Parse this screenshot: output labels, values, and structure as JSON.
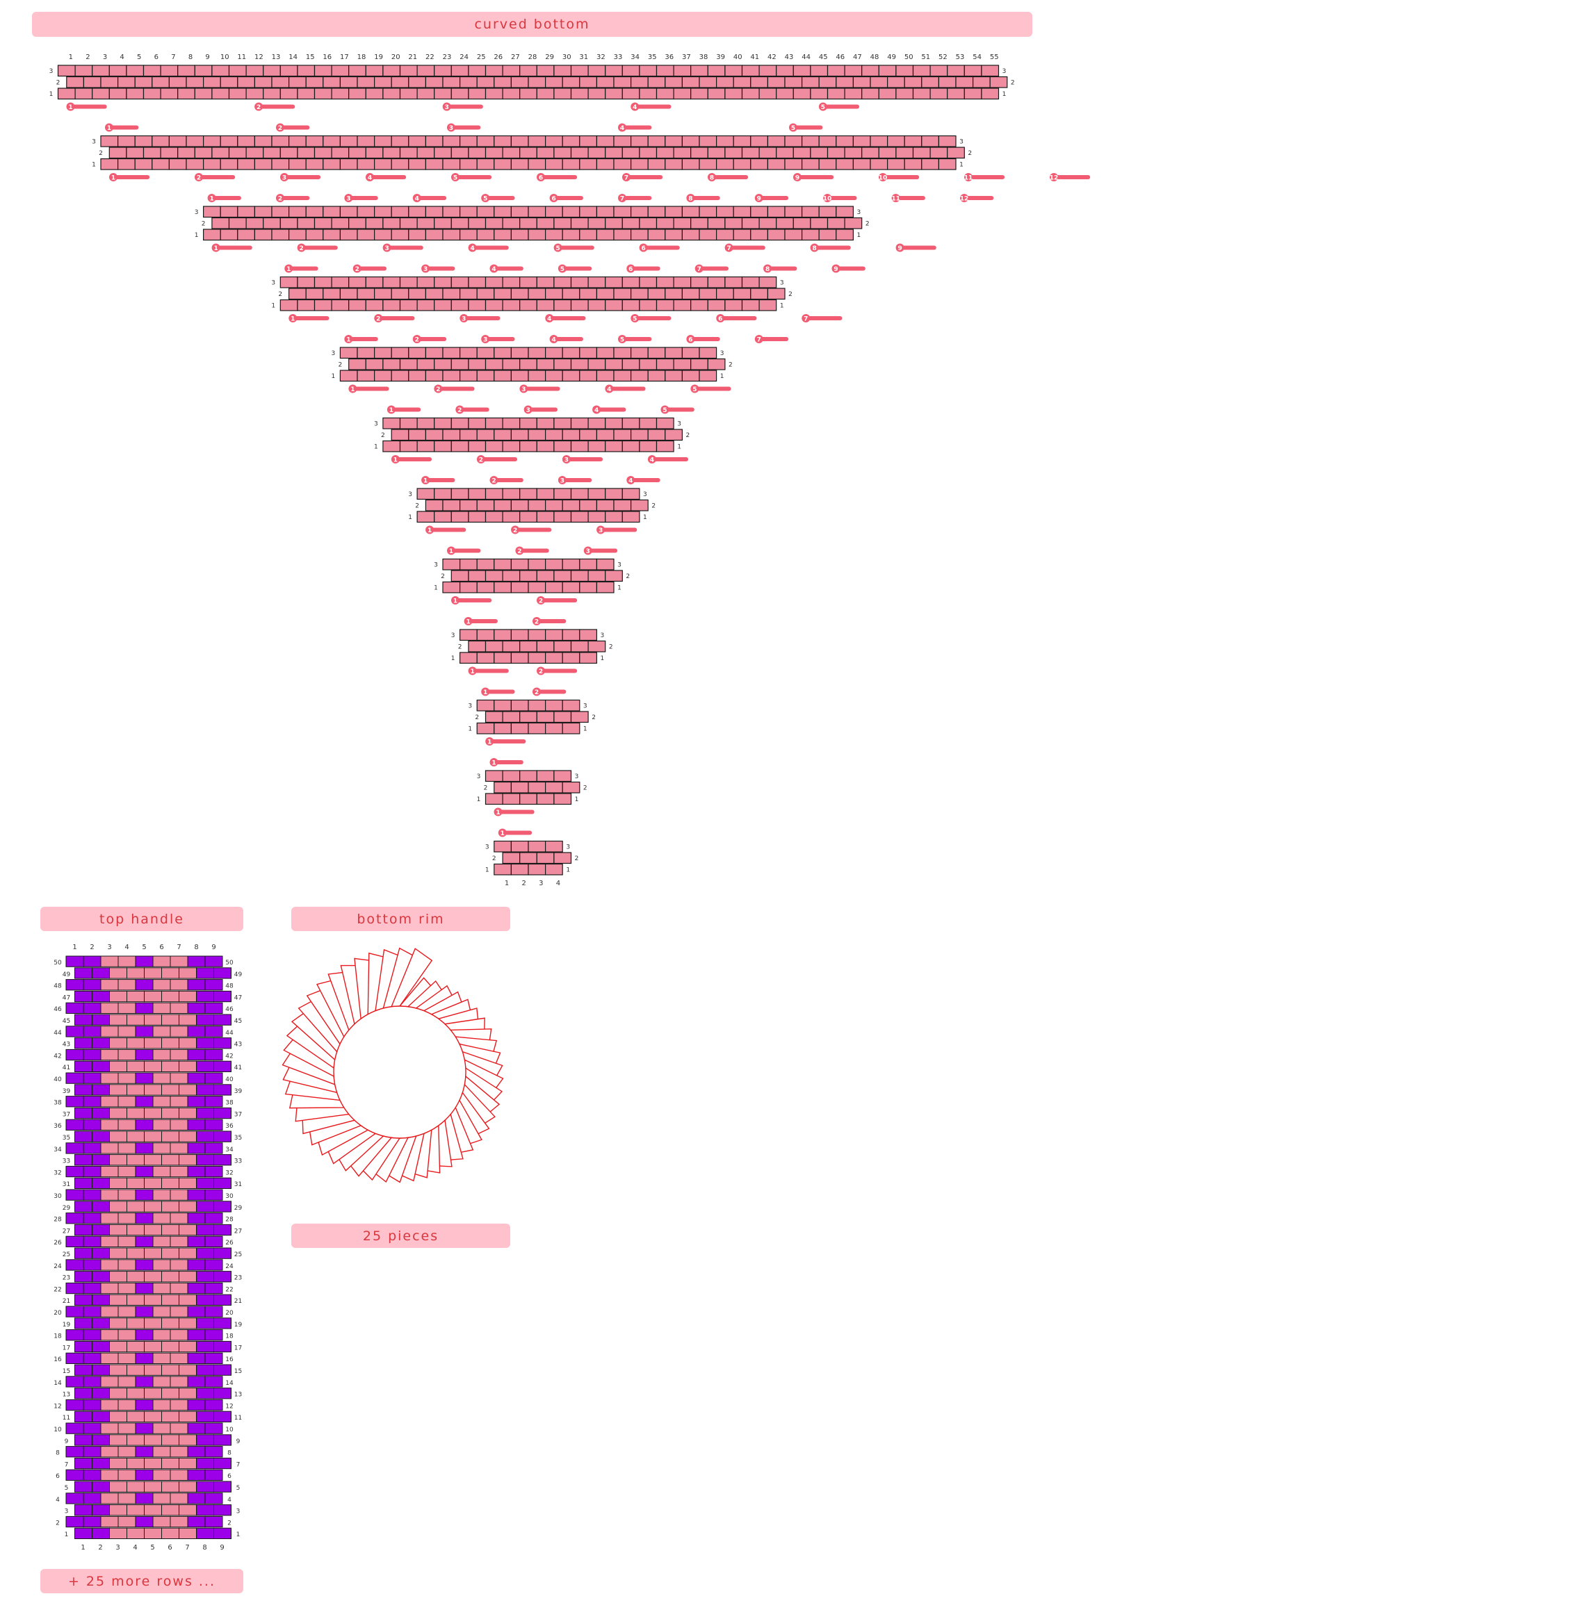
{
  "sections": {
    "curved_bottom": {
      "title": "curved bottom"
    },
    "top_handle": {
      "title": "top handle",
      "footer": "+ 25 more rows ..."
    },
    "bottom_rim": {
      "title": "bottom rim",
      "footer": "25 pieces"
    }
  },
  "colors": {
    "banner_bg": "#ffc1cc",
    "banner_text": "#d9363e",
    "bead_pink": "#f08ca0",
    "bead_purple": "#9b00e8",
    "thread": "#f25c73",
    "rim_stroke": "#e8191c"
  },
  "curved_bottom_pieces": [
    {
      "beads": 55,
      "rows": 3,
      "top_pieces": [],
      "bottom_pieces": [
        1,
        2,
        3,
        4,
        5
      ]
    },
    {
      "beads": 50,
      "rows": 3,
      "top_pieces": [
        1,
        2,
        3,
        4,
        5
      ],
      "bottom_pieces": [
        1,
        2,
        3,
        4,
        5,
        6,
        7,
        8,
        9,
        10,
        11,
        12
      ]
    },
    {
      "beads": 38,
      "rows": 3,
      "top_pieces": [
        1,
        2,
        3,
        4,
        5,
        6,
        7,
        8,
        9,
        10,
        11,
        12
      ],
      "bottom_pieces": [
        1,
        2,
        3,
        4,
        5,
        6,
        7,
        8,
        9
      ]
    },
    {
      "beads": 29,
      "rows": 3,
      "top_pieces": [
        1,
        2,
        3,
        4,
        5,
        6,
        7,
        8,
        9
      ],
      "bottom_pieces": [
        1,
        2,
        3,
        4,
        5,
        6,
        7
      ]
    },
    {
      "beads": 22,
      "rows": 3,
      "top_pieces": [
        1,
        2,
        3,
        4,
        5,
        6,
        7
      ],
      "bottom_pieces": [
        1,
        2,
        3,
        4,
        5
      ]
    },
    {
      "beads": 17,
      "rows": 3,
      "top_pieces": [
        1,
        2,
        3,
        4,
        5
      ],
      "bottom_pieces": [
        1,
        2,
        3,
        4
      ]
    },
    {
      "beads": 13,
      "rows": 3,
      "top_pieces": [
        1,
        2,
        3,
        4
      ],
      "bottom_pieces": [
        1,
        2,
        3
      ]
    },
    {
      "beads": 10,
      "rows": 3,
      "top_pieces": [
        1,
        2,
        3
      ],
      "bottom_pieces": [
        1,
        2
      ]
    },
    {
      "beads": 8,
      "rows": 3,
      "top_pieces": [
        1,
        2
      ],
      "bottom_pieces": [
        1,
        2
      ]
    },
    {
      "beads": 6,
      "rows": 3,
      "top_pieces": [
        1,
        2
      ],
      "bottom_pieces": [
        1
      ]
    },
    {
      "beads": 5,
      "rows": 3,
      "top_pieces": [
        1
      ],
      "bottom_pieces": [
        1
      ]
    },
    {
      "beads": 4,
      "rows": 3,
      "top_pieces": [
        1
      ],
      "bottom_pieces": []
    }
  ],
  "top_handle_pattern": {
    "columns": 9,
    "rows_shown": 50,
    "purple_columns": [
      1,
      2,
      5,
      8,
      9
    ]
  },
  "bottom_rim_pattern": {
    "pieces": 25
  }
}
